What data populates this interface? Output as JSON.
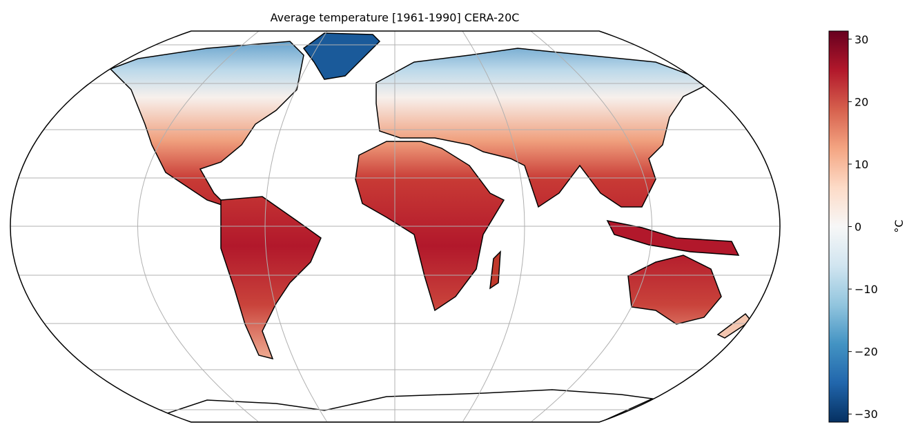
{
  "title": "Average temperature [1961-1990] CERA-20C",
  "colorbar": {
    "label": "°C",
    "lim": [
      -31.3,
      31.3
    ],
    "ticks": [
      {
        "value": -30,
        "label": "−30"
      },
      {
        "value": -20,
        "label": "−20"
      },
      {
        "value": -10,
        "label": "−10"
      },
      0,
      10,
      20,
      30
    ],
    "colors": [
      "#053061",
      "#2166ac",
      "#4393c3",
      "#92c5de",
      "#d1e5f0",
      "#f7f7f7",
      "#fddbc7",
      "#f4a582",
      "#d6604d",
      "#b2182b",
      "#67001f"
    ]
  }
}
